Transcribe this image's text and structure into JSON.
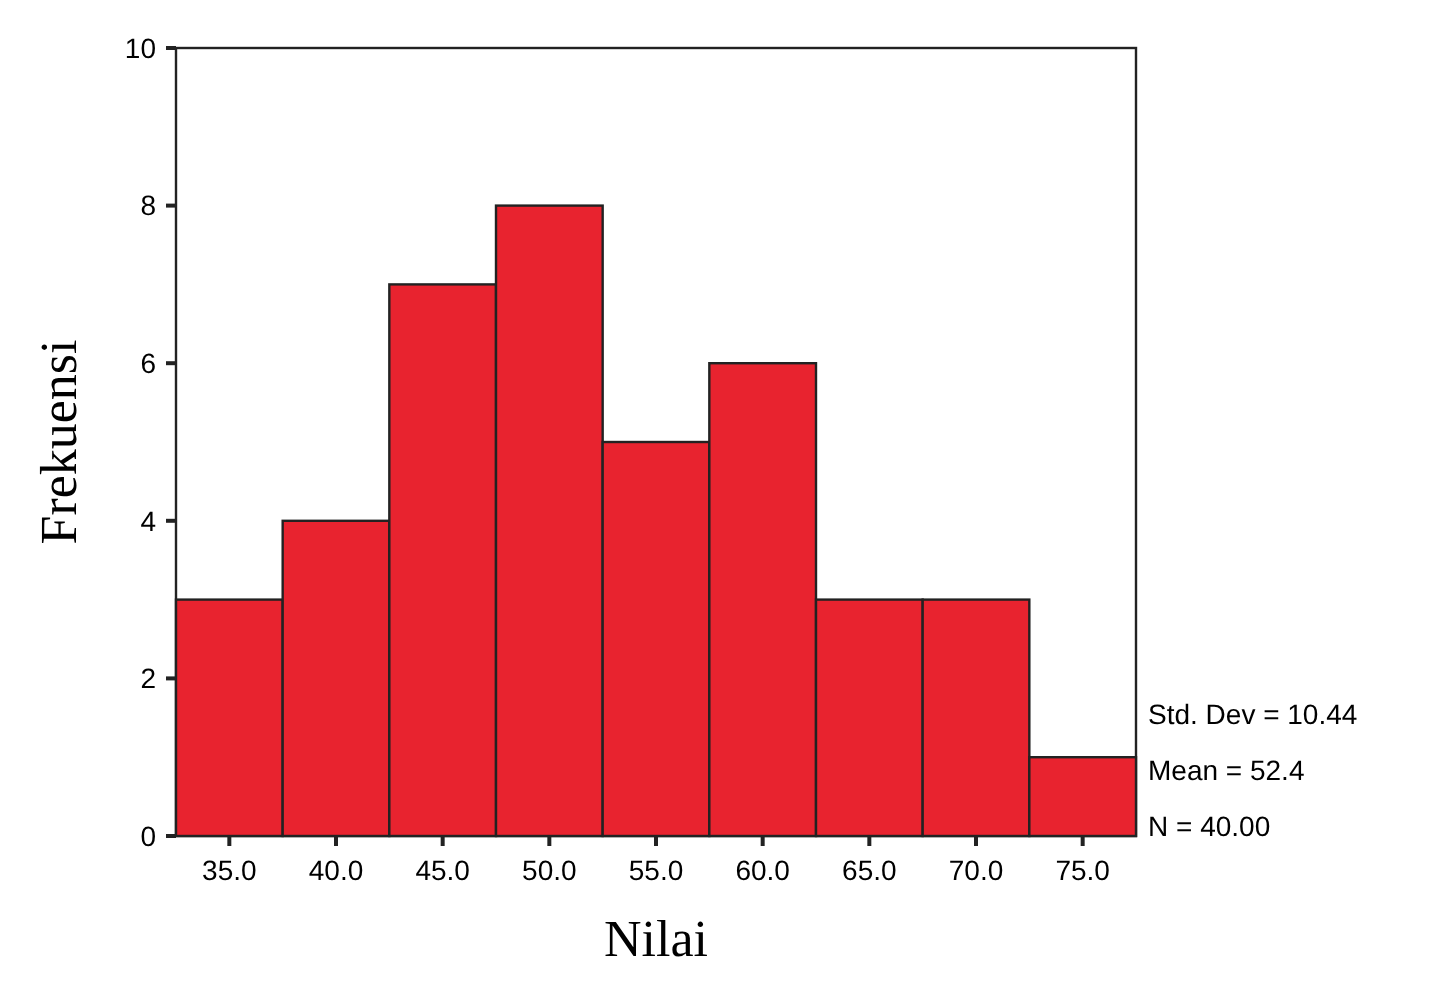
{
  "chart_data": {
    "type": "histogram",
    "xlabel": "Nilai",
    "ylabel": "Frekuensi",
    "bins": [
      32.5,
      37.5,
      42.5,
      47.5,
      52.5,
      57.5,
      62.5,
      67.5,
      72.5,
      77.5
    ],
    "values": [
      3,
      4,
      7,
      8,
      5,
      6,
      3,
      3,
      1
    ],
    "color": "#e8232f",
    "xlim": [
      32.5,
      77.5
    ],
    "xticks": [
      {
        "value": 35,
        "label": "35.0"
      },
      {
        "value": 40,
        "label": "40.0"
      },
      {
        "value": 45,
        "label": "45.0"
      },
      {
        "value": 50,
        "label": "50.0"
      },
      {
        "value": 55,
        "label": "55.0"
      },
      {
        "value": 60,
        "label": "60.0"
      },
      {
        "value": 65,
        "label": "65.0"
      },
      {
        "value": 70,
        "label": "70.0"
      },
      {
        "value": 75,
        "label": "75.0"
      }
    ],
    "ylim": [
      0,
      10
    ],
    "yticks": [
      0,
      2,
      4,
      6,
      8,
      10
    ],
    "grid": false,
    "annotations": [
      "Std. Dev = 10.44",
      "Mean = 52.4",
      "N = 40.00"
    ]
  }
}
